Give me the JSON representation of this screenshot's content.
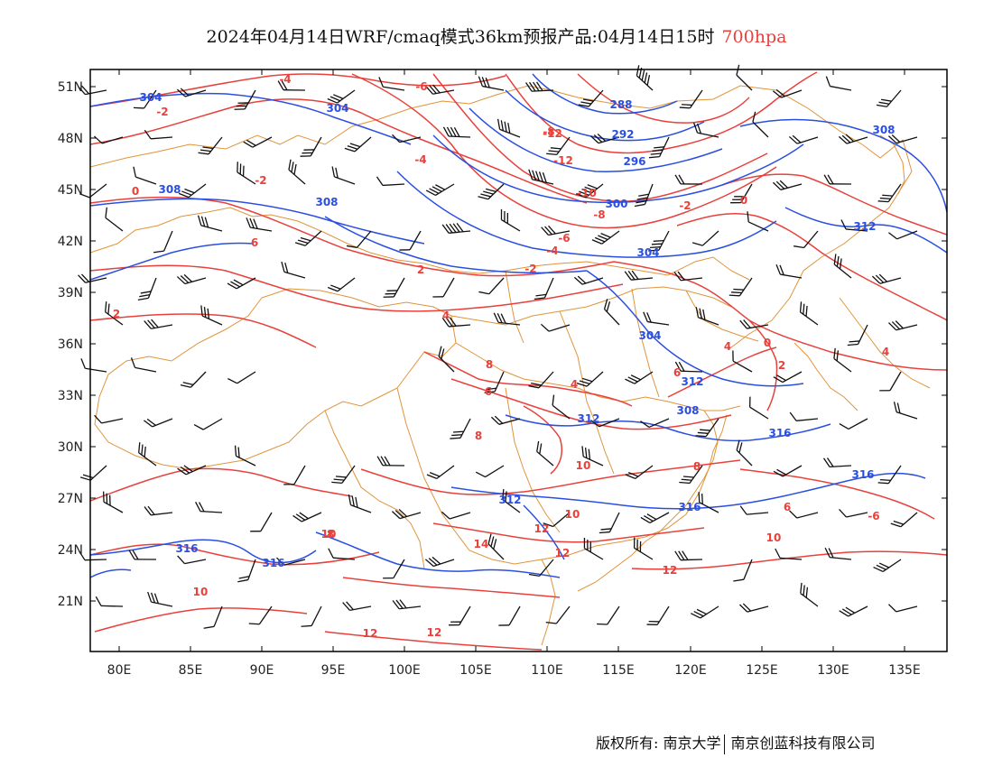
{
  "title": {
    "main": "2024年04月14日WRF/cmaq模式36km预报产品:04月14日15时",
    "level": "700hpa"
  },
  "colors": {
    "geopotential": "#2a4fe0",
    "temperature": "#e8413c",
    "border": "#e0943a",
    "wind": "#111111"
  },
  "axes": {
    "lat_labels": [
      "51N",
      "48N",
      "45N",
      "42N",
      "39N",
      "36N",
      "33N",
      "30N",
      "27N",
      "24N",
      "21N"
    ],
    "lon_labels": [
      "80E",
      "85E",
      "90E",
      "95E",
      "100E",
      "105E",
      "110E",
      "115E",
      "120E",
      "125E",
      "130E",
      "135E"
    ]
  },
  "geopotential_labels": [
    "304",
    "304",
    "308",
    "308",
    "288",
    "292",
    "296",
    "300",
    "304",
    "308",
    "312",
    "304",
    "312",
    "308",
    "312",
    "316",
    "312",
    "316",
    "316",
    "316",
    "316"
  ],
  "temperature_labels": [
    "-2",
    "-4",
    "-6",
    "-8",
    "-12",
    "-12",
    "-10",
    "-8",
    "-6",
    "-4",
    "-2",
    "-4",
    "0",
    "0",
    "6",
    "2",
    "2",
    "4",
    "8",
    "-2",
    "6",
    "8",
    "4",
    "4",
    "0",
    "4",
    "2",
    "6",
    "10",
    "10",
    "8",
    "6",
    "10",
    "8",
    "14",
    "12",
    "12",
    "10",
    "10",
    "12",
    "12",
    "12",
    "-6",
    "-2"
  ],
  "footer": {
    "copyright": "版权所有: 南京大学",
    "company": "南京创蓝科技有限公司"
  }
}
